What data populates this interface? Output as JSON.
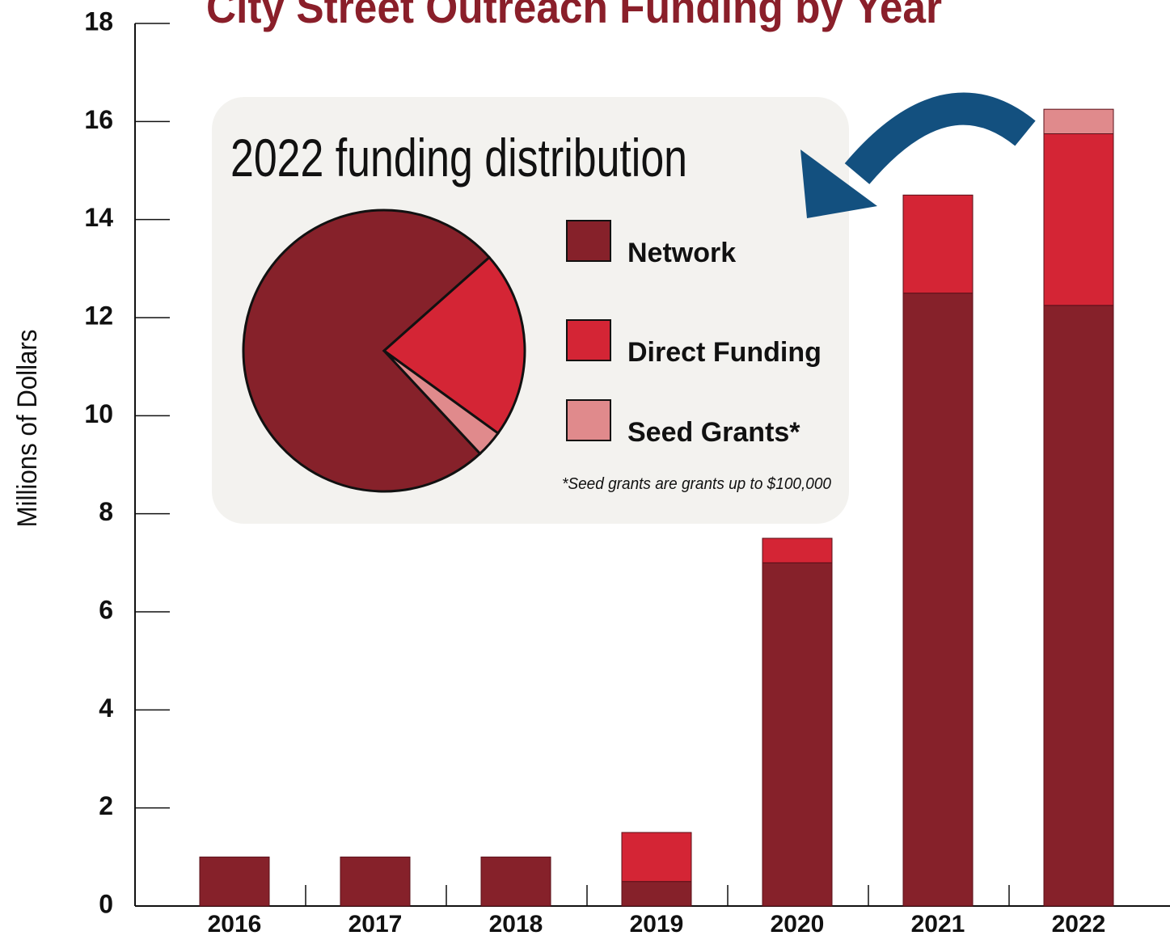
{
  "chart_data": [
    {
      "type": "bar",
      "stacked": true,
      "title": "City Street Outreach Funding by Year",
      "ylabel": "Millions of Dollars",
      "categories": [
        "2016",
        "2017",
        "2018",
        "2019",
        "2020",
        "2021",
        "2022"
      ],
      "series": [
        {
          "name": "Network",
          "color": "#86212a",
          "values": [
            1,
            1,
            1,
            0.5,
            7,
            12.5,
            12.25
          ]
        },
        {
          "name": "Direct Funding",
          "color": "#d42535",
          "values": [
            0,
            0,
            0,
            1,
            0.5,
            2,
            3.5
          ]
        },
        {
          "name": "Seed Grants*",
          "color": "#e08a8c",
          "values": [
            0,
            0,
            0,
            0,
            0,
            0,
            0.5
          ]
        }
      ],
      "ylim": [
        0,
        18
      ],
      "yticks": [
        0,
        2,
        4,
        6,
        8,
        10,
        12,
        14,
        16,
        18
      ]
    },
    {
      "type": "pie",
      "title": "2022 funding distribution",
      "values": [
        12.25,
        3.5,
        0.5
      ],
      "colors": [
        "#86212a",
        "#d42535",
        "#e08a8c"
      ],
      "note": "*Seed grants are grants up to $100,000"
    }
  ]
}
